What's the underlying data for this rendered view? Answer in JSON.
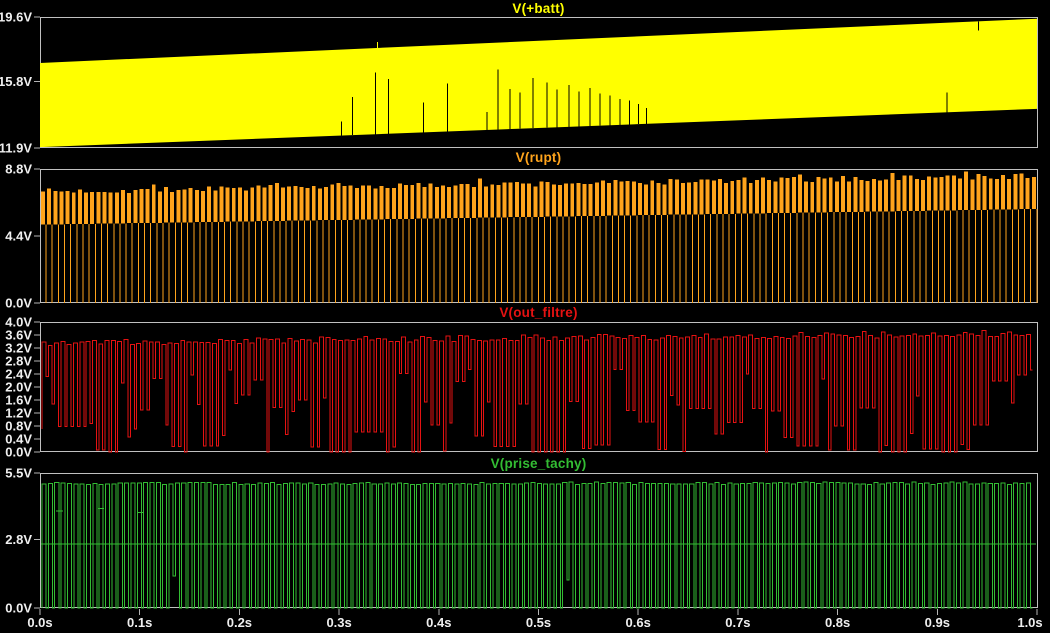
{
  "palette": {
    "background": "#000000",
    "border": "#c0c0c0",
    "tick": "#b4b4b4",
    "axis_text": "#efefef"
  },
  "time_axis": {
    "start_s": 0.0,
    "end_s": 1.0,
    "tick_interval_s": 0.1,
    "labels": [
      "0.0s",
      "0.1s",
      "0.2s",
      "0.3s",
      "0.4s",
      "0.5s",
      "0.6s",
      "0.7s",
      "0.8s",
      "0.9s",
      "1.0s"
    ]
  },
  "chart_data": [
    {
      "id": "vbatt",
      "type": "area",
      "title": "V(+batt)",
      "color": "#ffff00",
      "ylim": [
        11.9,
        19.6
      ],
      "yticks": [
        {
          "v": 19.6,
          "label": "19.6V"
        },
        {
          "v": 15.8,
          "label": "15.8V"
        },
        {
          "v": 11.9,
          "label": "11.9V"
        }
      ],
      "waveform": {
        "kind": "band",
        "bottom_v": [
          11.95,
          14.2
        ],
        "top_v": [
          16.9,
          19.5
        ],
        "notches_bottom": [
          {
            "t": 0.302,
            "d": 0.82
          },
          {
            "t": 0.313,
            "d": 2.23
          },
          {
            "t": 0.336,
            "d": 3.64
          },
          {
            "t": 0.349,
            "d": 3.23
          },
          {
            "t": 0.384,
            "d": 1.76
          },
          {
            "t": 0.408,
            "d": 2.82
          },
          {
            "t": 0.448,
            "d": 1.06
          },
          {
            "t": 0.459,
            "d": 3.53
          },
          {
            "t": 0.471,
            "d": 2.35
          },
          {
            "t": 0.481,
            "d": 2.12
          },
          {
            "t": 0.494,
            "d": 2.94
          },
          {
            "t": 0.508,
            "d": 2.65
          },
          {
            "t": 0.518,
            "d": 2.23
          },
          {
            "t": 0.53,
            "d": 2.47
          },
          {
            "t": 0.54,
            "d": 2.06
          },
          {
            "t": 0.551,
            "d": 2.23
          },
          {
            "t": 0.561,
            "d": 1.88
          },
          {
            "t": 0.571,
            "d": 1.76
          },
          {
            "t": 0.581,
            "d": 1.53
          },
          {
            "t": 0.591,
            "d": 1.41
          },
          {
            "t": 0.6,
            "d": 1.18
          },
          {
            "t": 0.608,
            "d": 0.94
          },
          {
            "t": 0.909,
            "d": 1.18
          }
        ],
        "notches_top": [
          {
            "t": 0.941,
            "d": 0.53
          }
        ],
        "spikes_top": [
          {
            "t": 0.338,
            "d": 0.35
          }
        ]
      }
    },
    {
      "id": "rupt",
      "type": "line",
      "title": "V(rupt)",
      "color": "#ffa41c",
      "ylim": [
        0,
        8.8
      ],
      "yticks": [
        {
          "v": 8.8,
          "label": "8.8V"
        },
        {
          "v": 4.4,
          "label": "4.4V"
        },
        {
          "v": 0.0,
          "label": "0.0V"
        }
      ],
      "waveform": {
        "kind": "dwell_pulse",
        "cycles": 162,
        "top_v": [
          7.32,
          8.35
        ],
        "top_jitter": 0.2,
        "band_bottom_v": [
          5.15,
          6.17
        ],
        "drop_v": 0.0,
        "seed": 7
      }
    },
    {
      "id": "out_filtre",
      "type": "line",
      "title": "V(out_filtre)",
      "color": "#e51212",
      "ylim": [
        0,
        4.0
      ],
      "yticks": [
        {
          "v": 4.0,
          "label": "4.0V"
        },
        {
          "v": 3.6,
          "label": "3.6V"
        },
        {
          "v": 3.2,
          "label": "3.2V"
        },
        {
          "v": 2.8,
          "label": "2.8V"
        },
        {
          "v": 2.4,
          "label": "2.4V"
        },
        {
          "v": 2.0,
          "label": "2.0V"
        },
        {
          "v": 1.6,
          "label": "1.6V"
        },
        {
          "v": 1.2,
          "label": "1.2V"
        },
        {
          "v": 0.8,
          "label": "0.8V"
        },
        {
          "v": 0.4,
          "label": "0.4V"
        },
        {
          "v": 0.0,
          "label": "0.0V"
        }
      ],
      "waveform": {
        "kind": "square",
        "cycles": 158,
        "duty": 0.62,
        "high_v": [
          3.36,
          3.66
        ],
        "high_jitter": 0.1,
        "low_levels": [
          {
            "v": 0.0,
            "w": 0.38
          },
          {
            "v": 0.7,
            "w": 0.14
          },
          {
            "v": 1.5,
            "w": 0.24
          },
          {
            "v": 2.3,
            "w": 0.24
          }
        ],
        "low_jitter": 0.25,
        "low_persist": 0.42,
        "seed": 11
      }
    },
    {
      "id": "prise_tachy",
      "type": "line",
      "title": "V(prise_tachy)",
      "color": "#33bd33",
      "ylim": [
        0,
        5.5
      ],
      "yticks": [
        {
          "v": 5.5,
          "label": "5.5V"
        },
        {
          "v": 2.8,
          "label": "2.8V"
        },
        {
          "v": 0.0,
          "label": "0.0V"
        }
      ],
      "waveform": {
        "kind": "square",
        "cycles": 157,
        "duty": 0.64,
        "high_v": [
          5.07,
          5.09
        ],
        "high_jitter": 0.05,
        "low_levels": [
          {
            "v": 0.0,
            "w": 1.0
          }
        ],
        "low_jitter": 0,
        "low_persist": 0,
        "low_anomalies": [
          {
            "t": 0.13,
            "v": 1.3
          },
          {
            "t": 0.52,
            "v": 1.15
          }
        ],
        "baseline_v": 2.6,
        "mid_segments": [
          {
            "t": 0.016,
            "v": 3.95,
            "dur": 0.007
          },
          {
            "t": 0.058,
            "v": 4.05,
            "dur": 0.006
          },
          {
            "t": 0.098,
            "v": 3.9,
            "dur": 0.006
          }
        ],
        "seed": 5
      }
    }
  ]
}
